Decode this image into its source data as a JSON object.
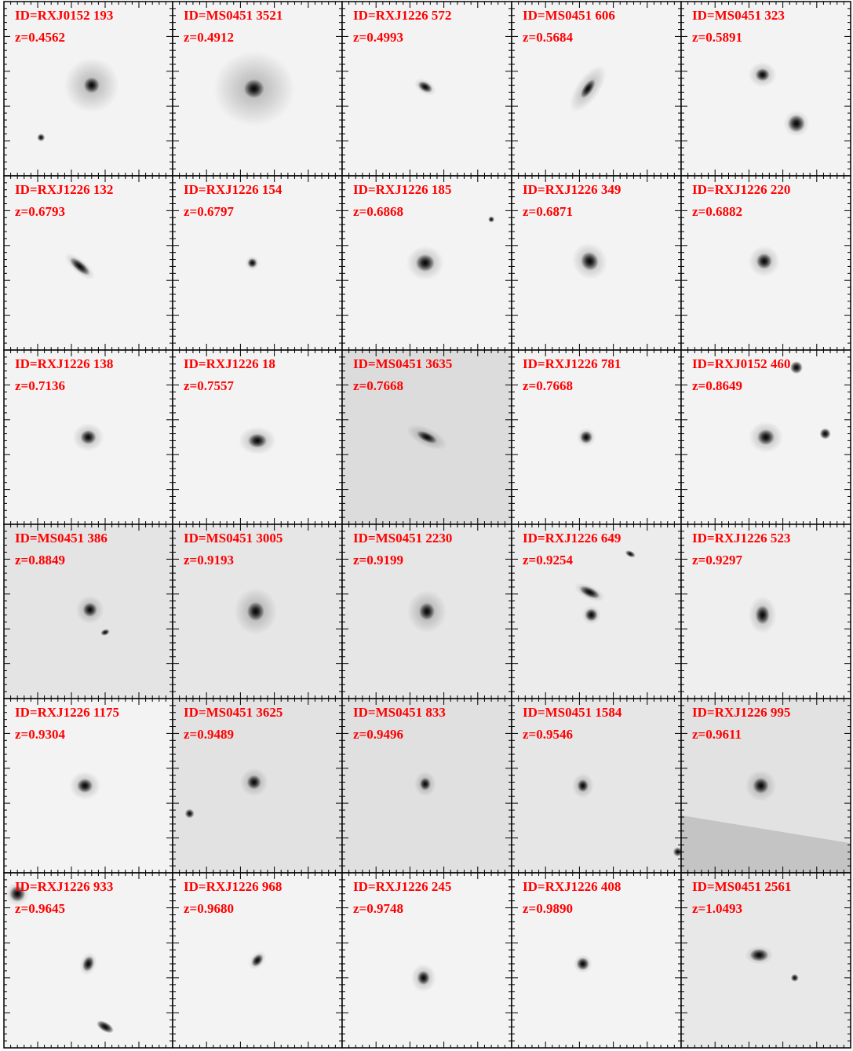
{
  "panels": [
    {
      "id": "ID=RXJ0152 193",
      "z": "z=0.4562"
    },
    {
      "id": "ID=MS0451 3521",
      "z": "z=0.4912"
    },
    {
      "id": "ID=RXJ1226 572",
      "z": "z=0.4993"
    },
    {
      "id": "ID=MS0451 606",
      "z": "z=0.5684"
    },
    {
      "id": "ID=MS0451 323",
      "z": "z=0.5891"
    },
    {
      "id": "ID=RXJ1226 132",
      "z": "z=0.6793"
    },
    {
      "id": "ID=RXJ1226 154",
      "z": "z=0.6797"
    },
    {
      "id": "ID=RXJ1226 185",
      "z": "z=0.6868"
    },
    {
      "id": "ID=RXJ1226 349",
      "z": "z=0.6871"
    },
    {
      "id": "ID=RXJ1226 220",
      "z": "z=0.6882"
    },
    {
      "id": "ID=RXJ1226 138",
      "z": "z=0.7136"
    },
    {
      "id": "ID=RXJ1226 18",
      "z": "z=0.7557"
    },
    {
      "id": "ID=MS0451 3635",
      "z": "z=0.7668"
    },
    {
      "id": "ID=RXJ1226 781",
      "z": "z=0.7668"
    },
    {
      "id": "ID=RXJ0152 460",
      "z": "z=0.8649"
    },
    {
      "id": "ID=MS0451 386",
      "z": "z=0.8849"
    },
    {
      "id": "ID=MS0451 3005",
      "z": "z=0.9193"
    },
    {
      "id": "ID=MS0451 2230",
      "z": "z=0.9199"
    },
    {
      "id": "ID=RXJ1226 649",
      "z": "z=0.9254"
    },
    {
      "id": "ID=RXJ1226 523",
      "z": "z=0.9297"
    },
    {
      "id": "ID=RXJ1226 1175",
      "z": "z=0.9304"
    },
    {
      "id": "ID=MS0451 3625",
      "z": "z=0.9489"
    },
    {
      "id": "ID=MS0451 833",
      "z": "z=0.9496"
    },
    {
      "id": "ID=MS0451 1584",
      "z": "z=0.9546"
    },
    {
      "id": "ID=RXJ1226 995",
      "z": "z=0.9611"
    },
    {
      "id": "ID=RXJ1226 933",
      "z": "z=0.9645"
    },
    {
      "id": "ID=RXJ1226 968",
      "z": "z=0.9680"
    },
    {
      "id": "ID=RXJ1226 245",
      "z": "z=0.9748"
    },
    {
      "id": "ID=RXJ1226 408",
      "z": "z=0.9890"
    },
    {
      "id": "ID=MS0451 2561",
      "z": "z=1.0493"
    }
  ]
}
